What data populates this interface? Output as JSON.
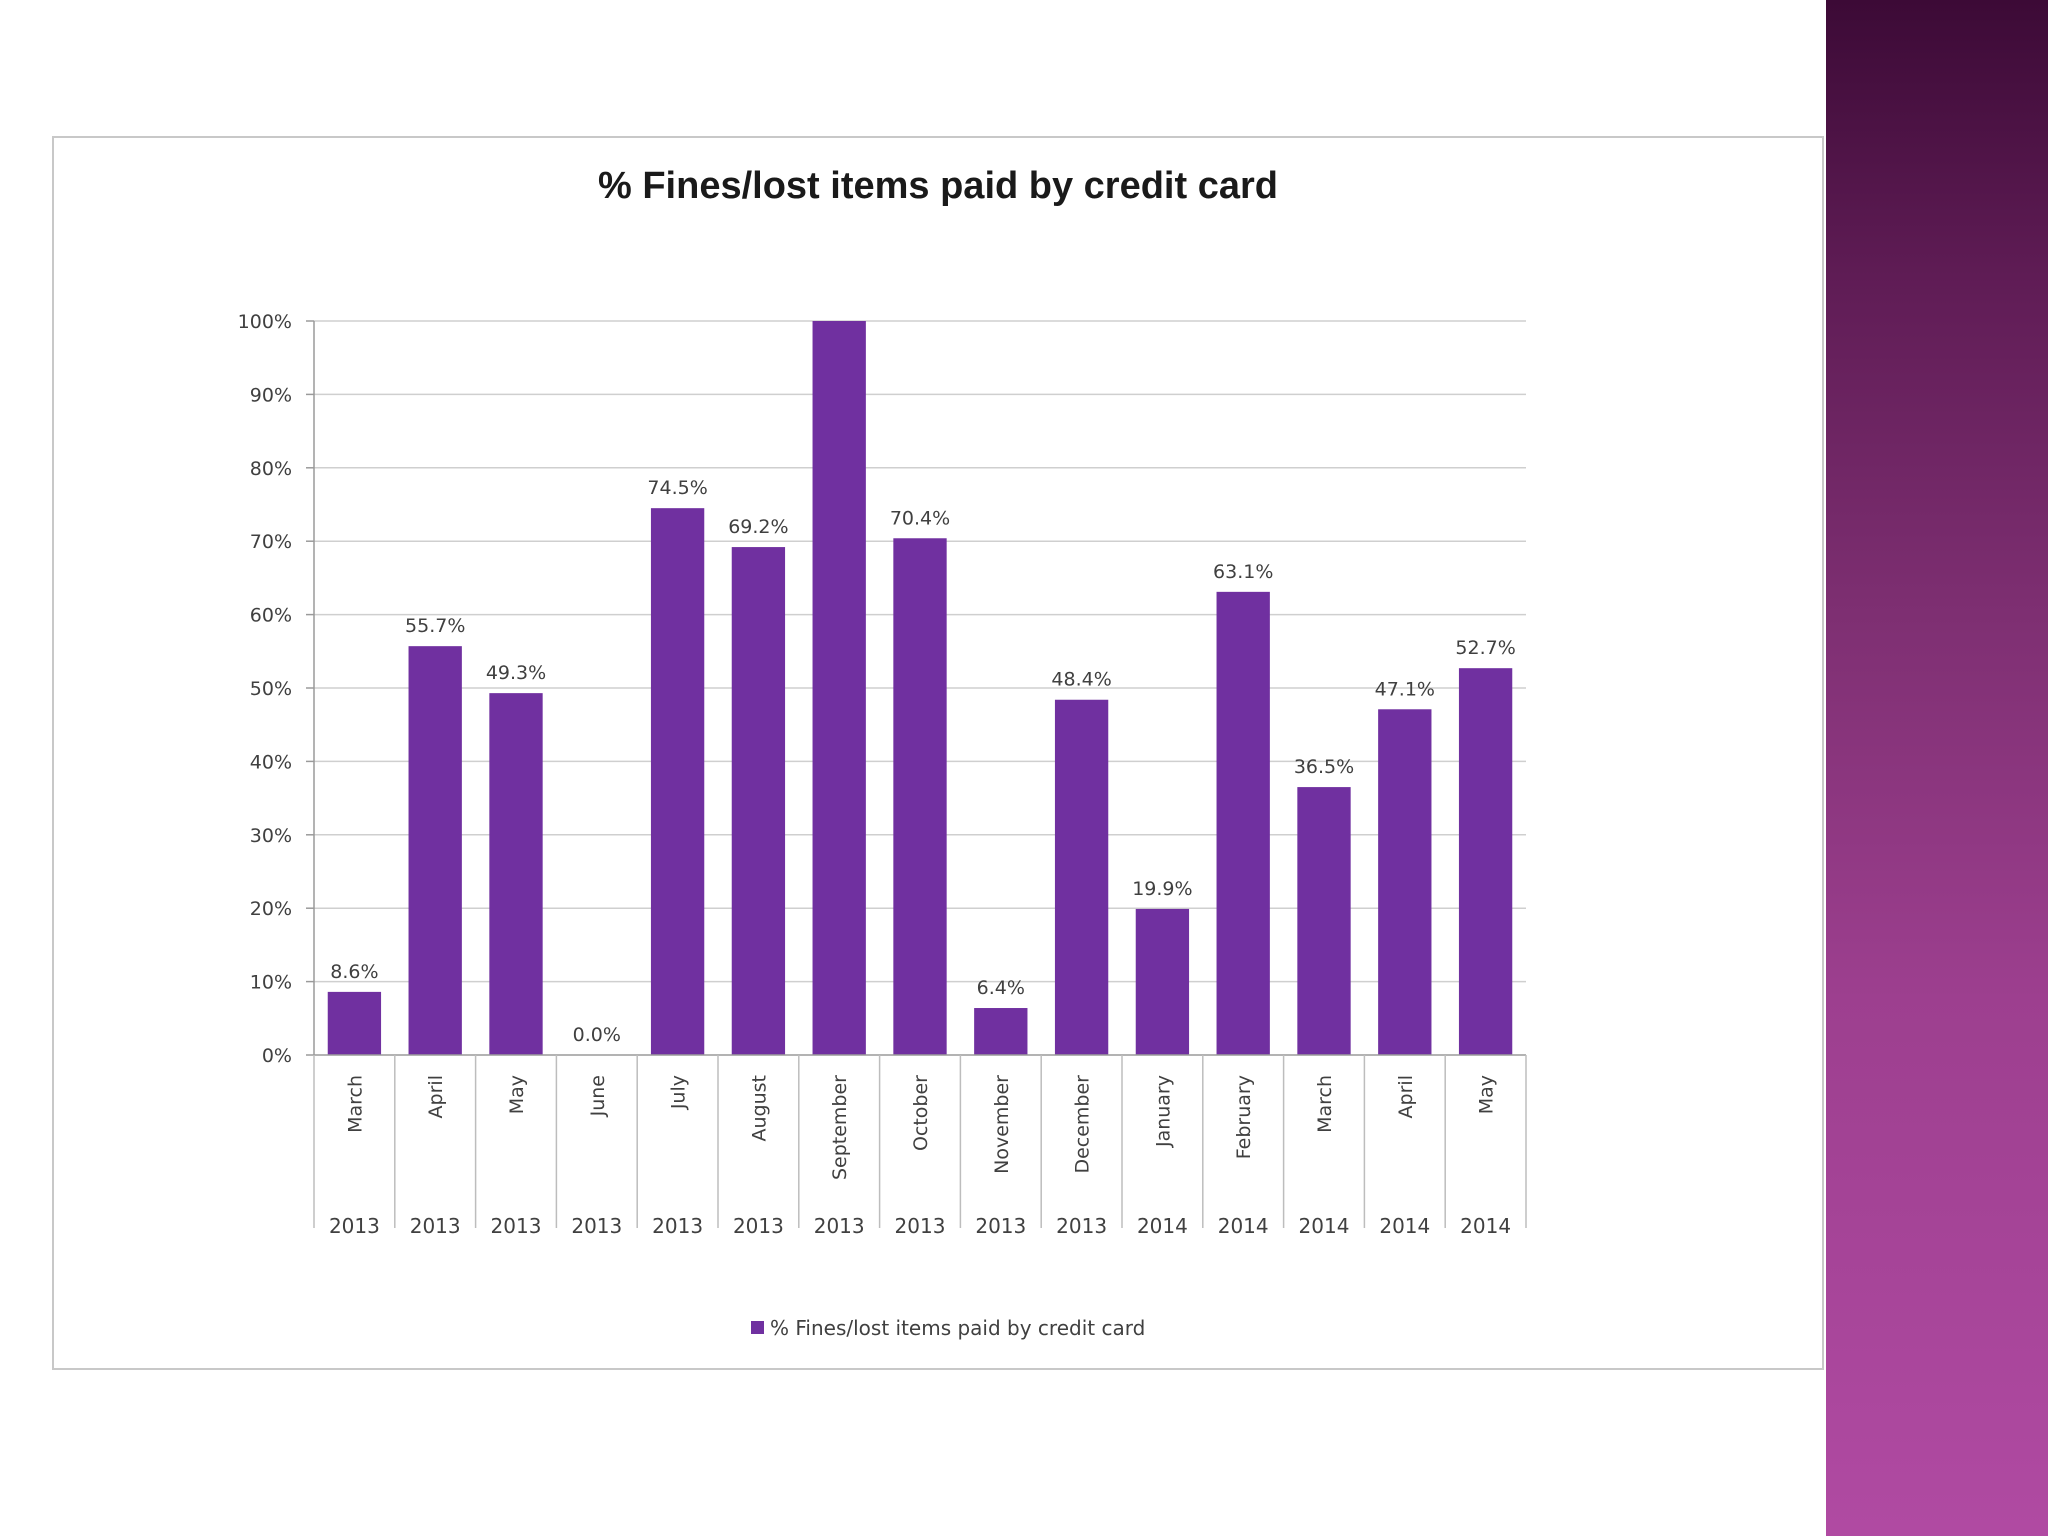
{
  "chart_data": {
    "type": "bar",
    "title": "% Fines/lost items paid by credit card",
    "xlabel": "",
    "ylabel": "",
    "ylim": [
      0,
      100
    ],
    "y_ticks": [
      "0%",
      "10%",
      "20%",
      "30%",
      "40%",
      "50%",
      "60%",
      "70%",
      "80%",
      "90%",
      "100%"
    ],
    "categories": [
      {
        "month": "March",
        "year": "2013"
      },
      {
        "month": "April",
        "year": "2013"
      },
      {
        "month": "May",
        "year": "2013"
      },
      {
        "month": "June",
        "year": "2013"
      },
      {
        "month": "July",
        "year": "2013"
      },
      {
        "month": "August",
        "year": "2013"
      },
      {
        "month": "September",
        "year": "2013"
      },
      {
        "month": "October",
        "year": "2013"
      },
      {
        "month": "November",
        "year": "2013"
      },
      {
        "month": "December",
        "year": "2013"
      },
      {
        "month": "January",
        "year": "2014"
      },
      {
        "month": "February",
        "year": "2014"
      },
      {
        "month": "March",
        "year": "2014"
      },
      {
        "month": "April",
        "year": "2014"
      },
      {
        "month": "May",
        "year": "2014"
      }
    ],
    "series": [
      {
        "name": "% Fines/lost items paid by credit card",
        "color": "#7030a0",
        "values": [
          8.6,
          55.7,
          49.3,
          0.0,
          74.5,
          69.2,
          100,
          70.4,
          6.4,
          48.4,
          19.9,
          63.1,
          36.5,
          47.1,
          52.7
        ],
        "data_labels": [
          "8.6%",
          "55.7%",
          "49.3%",
          "0.0%",
          "74.5%",
          "69.2%",
          "",
          "70.4%",
          "6.4%",
          "48.4%",
          "19.9%",
          "63.1%",
          "36.5%",
          "47.1%",
          "52.7%"
        ]
      }
    ],
    "grid": true,
    "legend_position": "bottom"
  },
  "theme": {
    "side_bar_colors": [
      "#3c0a36",
      "#b04aa2"
    ]
  }
}
